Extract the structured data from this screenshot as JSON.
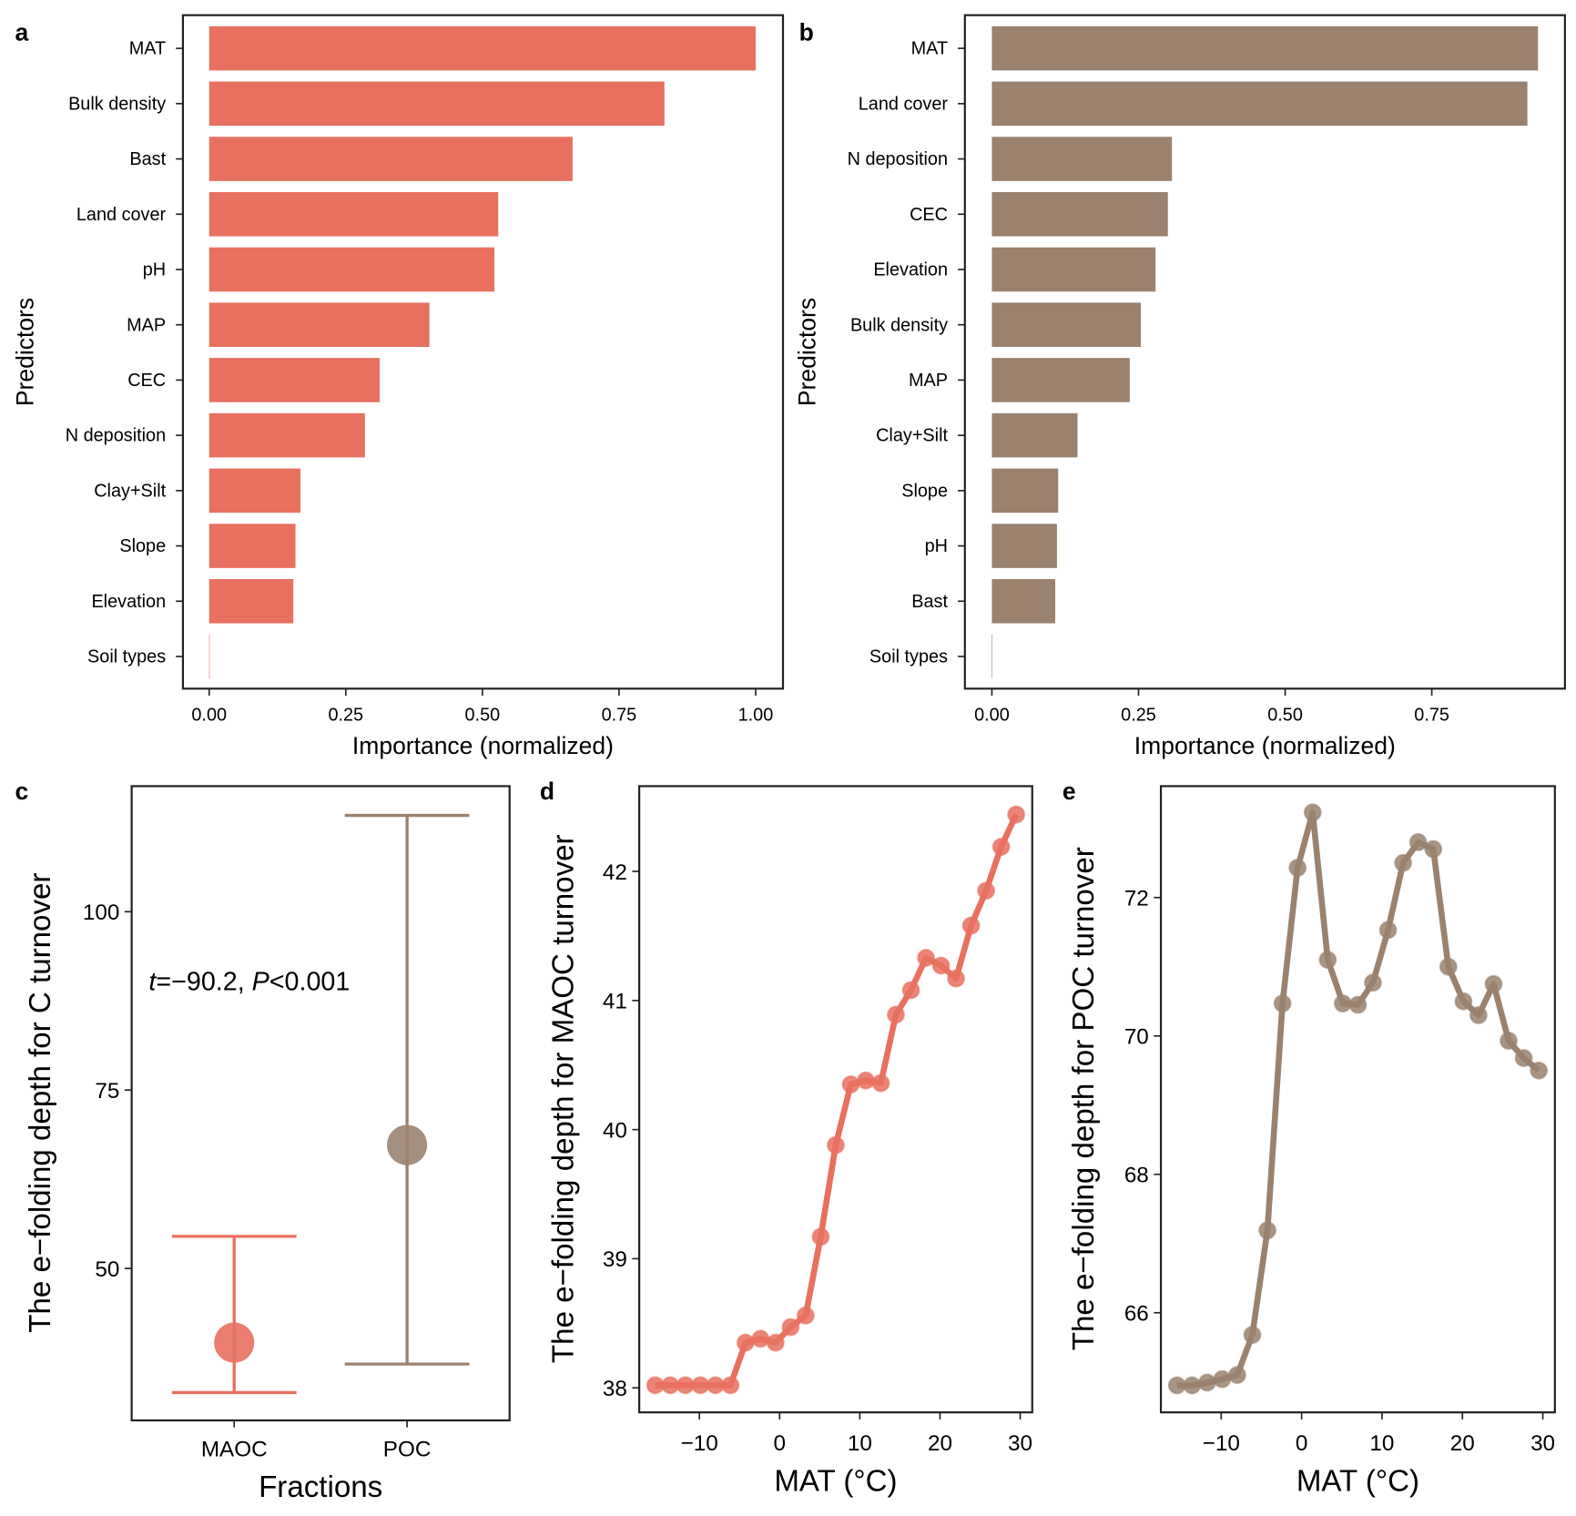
{
  "colors": {
    "maoc": "#E8705F",
    "poc": "#9A826F",
    "axis": "#222222"
  },
  "chart_data": [
    {
      "panel": "a",
      "type": "bar",
      "orientation": "horizontal",
      "categories": [
        "MAT",
        "Bulk density",
        "Bast",
        "Land cover",
        "pH",
        "MAP",
        "CEC",
        "N deposition",
        "Clay+Silt",
        "Slope",
        "Elevation",
        "Soil types"
      ],
      "values": [
        1.0,
        0.833,
        0.665,
        0.529,
        0.522,
        0.403,
        0.312,
        0.285,
        0.167,
        0.158,
        0.154,
        0.0
      ],
      "xlabel": "Importance (normalized)",
      "ylabel": "Predictors",
      "xticks": [
        "0.00",
        "0.25",
        "0.50",
        "0.75",
        "1.00"
      ],
      "xtick_values": [
        0,
        0.25,
        0.5,
        0.75,
        1.0
      ],
      "xlim": [
        -0.048,
        1.05
      ],
      "color": "#E8705F"
    },
    {
      "panel": "b",
      "type": "bar",
      "orientation": "horizontal",
      "categories": [
        "MAT",
        "Land cover",
        "N deposition",
        "CEC",
        "Elevation",
        "Bulk density",
        "MAP",
        "Clay+Silt",
        "Slope",
        "pH",
        "Bast",
        "Soil types"
      ],
      "values": [
        0.931,
        0.913,
        0.307,
        0.3,
        0.279,
        0.254,
        0.235,
        0.146,
        0.113,
        0.111,
        0.108,
        0.0
      ],
      "xlabel": "Importance (normalized)",
      "ylabel": "Predictors",
      "xticks": [
        "0.00",
        "0.25",
        "0.50",
        "0.75"
      ],
      "xtick_values": [
        0,
        0.25,
        0.5,
        0.75
      ],
      "xlim": [
        -0.046,
        0.977
      ],
      "color": "#9A826F"
    },
    {
      "panel": "c",
      "type": "scatter",
      "subtype": "errorbar",
      "categories": [
        "MAOC",
        "POC"
      ],
      "means": [
        39.6,
        67.3
      ],
      "lower": [
        32.6,
        36.6
      ],
      "upper": [
        54.5,
        113.5
      ],
      "colors": [
        "#E8705F",
        "#9A826F"
      ],
      "xlabel": "Fractions",
      "ylabel": "The e−folding depth for C turnover",
      "yticks": [
        "50",
        "75",
        "100"
      ],
      "ytick_values": [
        50,
        75,
        100
      ],
      "ylim": [
        28.7,
        117.6
      ],
      "annotation": {
        "t_label": "t",
        "t_value": "=−90.2, ",
        "p_label": "P",
        "p_value": "<0.001"
      }
    },
    {
      "panel": "d",
      "type": "line",
      "x": [
        -15.5,
        -13.625,
        -11.75,
        -9.875,
        -8.0,
        -6.125,
        -4.25,
        -2.375,
        -0.5,
        1.375,
        3.25,
        5.125,
        7.0,
        8.875,
        10.75,
        12.625,
        14.5,
        16.375,
        18.25,
        20.125,
        22.0,
        23.875,
        25.75,
        27.625,
        29.5
      ],
      "y": [
        38.02,
        38.02,
        38.02,
        38.02,
        38.02,
        38.02,
        38.35,
        38.38,
        38.35,
        38.47,
        38.56,
        39.17,
        39.88,
        40.35,
        40.38,
        40.36,
        40.89,
        41.08,
        41.33,
        41.27,
        41.17,
        41.58,
        41.85,
        42.19,
        42.44
      ],
      "xlabel": "MAT (°C)",
      "ylabel": "The e−folding depth for MAOC turnover",
      "xticks": [
        "−10",
        "0",
        "10",
        "20",
        "30"
      ],
      "xtick_values": [
        -10,
        0,
        10,
        20,
        30
      ],
      "yticks": [
        "38",
        "39",
        "40",
        "41",
        "42"
      ],
      "ytick_values": [
        38,
        39,
        40,
        41,
        42
      ],
      "xlim": [
        -17.5,
        31.5
      ],
      "ylim": [
        37.81,
        42.66
      ],
      "color": "#E8705F"
    },
    {
      "panel": "e",
      "type": "line",
      "x": [
        -15.5,
        -13.625,
        -11.75,
        -9.875,
        -8.0,
        -6.125,
        -4.25,
        -2.375,
        -0.5,
        1.375,
        3.25,
        5.125,
        7.0,
        8.875,
        10.75,
        12.625,
        14.5,
        16.375,
        18.25,
        20.125,
        22.0,
        23.875,
        25.75,
        27.625,
        29.5
      ],
      "y": [
        64.95,
        64.95,
        64.99,
        65.04,
        65.1,
        65.68,
        67.19,
        70.47,
        72.43,
        73.23,
        71.1,
        70.47,
        70.45,
        70.77,
        71.53,
        72.5,
        72.8,
        72.7,
        71.0,
        70.5,
        70.3,
        70.75,
        69.93,
        69.68,
        69.5
      ],
      "xlabel": "MAT (°C)",
      "ylabel": "The e−folding depth for POC turnover",
      "xticks": [
        "−10",
        "0",
        "10",
        "20",
        "30"
      ],
      "xtick_values": [
        -10,
        0,
        10,
        20,
        30
      ],
      "yticks": [
        "66",
        "68",
        "70",
        "72"
      ],
      "ytick_values": [
        66,
        68,
        70,
        72
      ],
      "xlim": [
        -17.5,
        31.5
      ],
      "ylim": [
        64.56,
        73.61
      ],
      "color": "#9A826F"
    }
  ]
}
